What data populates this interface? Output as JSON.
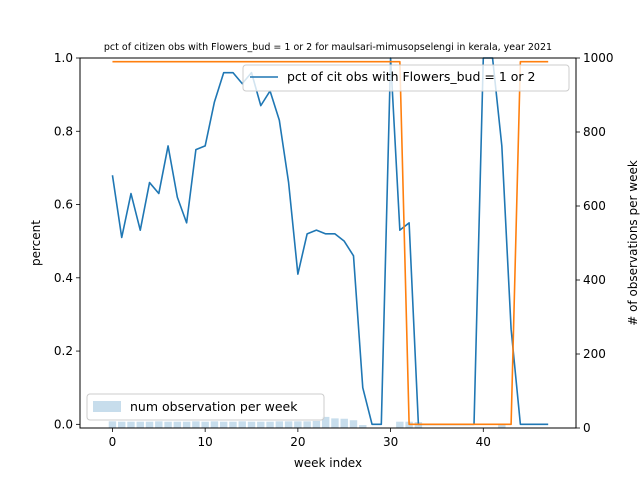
{
  "chart_data": {
    "type": "line",
    "title": "pct of citizen obs with Flowers_bud = 1 or 2 for maulsari-mimusopselengi in kerala, year 2021",
    "xlabel": "week index",
    "ylabel": "percent",
    "y2label": "# of observations per week",
    "xlim": [
      -3.5,
      50
    ],
    "ylim": [
      -0.01,
      1.0
    ],
    "y2lim": [
      0,
      1000
    ],
    "xticks": [
      "0",
      "10",
      "20",
      "30",
      "40"
    ],
    "xtick_values": [
      0,
      10,
      20,
      30,
      40
    ],
    "yticks": [
      "0.0",
      "0.2",
      "0.4",
      "0.6",
      "0.8",
      "1.0"
    ],
    "ytick_values": [
      0.0,
      0.2,
      0.4,
      0.6,
      0.8,
      1.0
    ],
    "y2ticks": [
      "0",
      "200",
      "400",
      "600",
      "800",
      "1000"
    ],
    "y2tick_values": [
      0,
      200,
      400,
      600,
      800,
      1000
    ],
    "x": [
      0,
      1,
      2,
      3,
      4,
      5,
      6,
      7,
      8,
      9,
      10,
      11,
      12,
      13,
      14,
      15,
      16,
      17,
      18,
      19,
      20,
      21,
      22,
      23,
      24,
      25,
      26,
      27,
      28,
      29,
      30,
      31,
      32,
      33,
      34,
      35,
      36,
      37,
      38,
      39,
      40,
      41,
      42,
      43,
      44,
      45,
      46,
      47
    ],
    "series": [
      {
        "name": "pct of cit obs with Flowers_bud = 1 or 2",
        "axis": "left",
        "color": "#1f77b4",
        "values": [
          0.68,
          0.51,
          0.63,
          0.53,
          0.66,
          0.63,
          0.76,
          0.62,
          0.55,
          0.75,
          0.76,
          0.88,
          0.96,
          0.96,
          0.93,
          0.96,
          0.87,
          0.91,
          0.83,
          0.66,
          0.41,
          0.52,
          0.53,
          0.52,
          0.52,
          0.5,
          0.46,
          0.1,
          0.0,
          0.0,
          1.0,
          0.53,
          0.55,
          0.0,
          0.0,
          0.0,
          0.0,
          0.0,
          0.0,
          0.0,
          1.0,
          1.0,
          0.76,
          0.26,
          0.0,
          0.0,
          0.0,
          0.0
        ]
      },
      {
        "name": "",
        "axis": "left",
        "color": "#ff7f0e",
        "values": [
          0.99,
          0.99,
          0.99,
          0.99,
          0.99,
          0.99,
          0.99,
          0.99,
          0.99,
          0.99,
          0.99,
          0.99,
          0.99,
          0.99,
          0.99,
          0.99,
          0.99,
          0.99,
          0.99,
          0.99,
          0.99,
          0.99,
          0.99,
          0.99,
          0.99,
          0.99,
          0.99,
          0.99,
          0.99,
          0.99,
          0.99,
          0.99,
          0.0,
          0.0,
          0.0,
          0.0,
          0.0,
          0.0,
          0.0,
          0.0,
          0.0,
          0.0,
          0.0,
          0.0,
          0.99,
          0.99,
          0.99,
          0.99
        ]
      },
      {
        "name": "num observation per week",
        "type": "bar",
        "axis": "right",
        "color": "#1f77b4",
        "opacity": 0.25,
        "values": [
          18,
          17,
          17,
          17,
          17,
          18,
          17,
          17,
          17,
          18,
          17,
          18,
          17,
          17,
          18,
          17,
          17,
          17,
          18,
          18,
          18,
          18,
          19,
          30,
          26,
          25,
          21,
          8,
          1,
          1,
          1,
          17,
          17,
          16,
          1,
          1,
          1,
          1,
          1,
          1,
          1,
          1,
          12,
          1,
          1,
          1,
          1,
          1
        ]
      }
    ],
    "legend": [
      {
        "label": "pct of cit obs with Flowers_bud = 1 or 2",
        "placement": "top-right"
      },
      {
        "label": "num observation per week",
        "placement": "bottom-left"
      }
    ],
    "grid": false
  }
}
